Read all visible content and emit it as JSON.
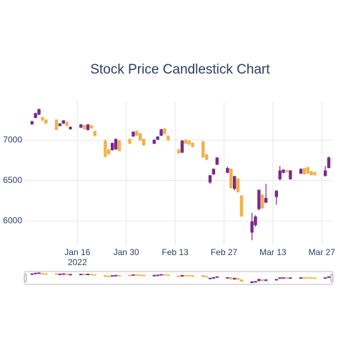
{
  "chart_data": {
    "type": "candlestick",
    "title": "Stock Price Candlestick Chart",
    "x": [
      "2022-01-03",
      "2022-01-04",
      "2022-01-05",
      "2022-01-06",
      "2022-01-07",
      "2022-01-10",
      "2022-01-11",
      "2022-01-12",
      "2022-01-13",
      "2022-01-14",
      "2022-01-17",
      "2022-01-18",
      "2022-01-19",
      "2022-01-20",
      "2022-01-21",
      "2022-01-24",
      "2022-01-25",
      "2022-01-26",
      "2022-01-27",
      "2022-01-28",
      "2022-01-31",
      "2022-02-01",
      "2022-02-02",
      "2022-02-03",
      "2022-02-04",
      "2022-02-07",
      "2022-02-08",
      "2022-02-09",
      "2022-02-10",
      "2022-02-11",
      "2022-02-14",
      "2022-02-15",
      "2022-02-16",
      "2022-02-17",
      "2022-02-18",
      "2022-02-21",
      "2022-02-22",
      "2022-02-23",
      "2022-02-24",
      "2022-02-25",
      "2022-02-28",
      "2022-03-01",
      "2022-03-02",
      "2022-03-03",
      "2022-03-04",
      "2022-03-07",
      "2022-03-08",
      "2022-03-09",
      "2022-03-10",
      "2022-03-11",
      "2022-03-14",
      "2022-03-15",
      "2022-03-16",
      "2022-03-17",
      "2022-03-18",
      "2022-03-21",
      "2022-03-22",
      "2022-03-23",
      "2022-03-24",
      "2022-03-25",
      "2022-03-28",
      "2022-03-29"
    ],
    "open": [
      7200,
      7280,
      7320,
      7280,
      7250,
      7250,
      7180,
      7210,
      7220,
      7140,
      7160,
      7180,
      7130,
      7180,
      7110,
      6990,
      6880,
      6880,
      6890,
      6990,
      7010,
      7050,
      7110,
      7080,
      7010,
      6960,
      7010,
      7060,
      7140,
      7050,
      6880,
      6850,
      7000,
      6990,
      6960,
      6980,
      6820,
      6480,
      6580,
      6700,
      6600,
      6640,
      6400,
      6520,
      6310,
      5860,
      5950,
      6150,
      6320,
      6230,
      6300,
      6520,
      6600,
      6620,
      6520,
      6590,
      6650,
      6660,
      6610,
      6600,
      6560,
      6660
    ],
    "high": [
      7240,
      7340,
      7390,
      7290,
      7260,
      7260,
      7210,
      7250,
      7230,
      7170,
      7200,
      7190,
      7200,
      7190,
      7120,
      7010,
      6890,
      6970,
      7020,
      7000,
      7020,
      7110,
      7120,
      7090,
      7020,
      7010,
      7050,
      7140,
      7150,
      7060,
      6890,
      7000,
      7010,
      7000,
      6970,
      6990,
      6830,
      6570,
      6650,
      6790,
      6670,
      6650,
      6560,
      6530,
      6320,
      6100,
      6070,
      6390,
      6330,
      6460,
      6380,
      6680,
      6640,
      6630,
      6630,
      6650,
      6660,
      6670,
      6620,
      6610,
      6680,
      6800
    ],
    "low": [
      7190,
      7270,
      7310,
      7230,
      7200,
      7120,
      7170,
      7200,
      7170,
      7130,
      7150,
      7130,
      7120,
      7140,
      7040,
      6780,
      6820,
      6870,
      6880,
      6860,
      6950,
      7040,
      7050,
      6990,
      6930,
      6950,
      7000,
      7050,
      7070,
      6990,
      6830,
      6840,
      6950,
      6940,
      6910,
      6780,
      6750,
      6460,
      6570,
      6690,
      6590,
      6400,
      6380,
      6350,
      6050,
      5760,
      5930,
      6130,
      6150,
      6220,
      6200,
      6500,
      6590,
      6600,
      6510,
      6580,
      6570,
      6580,
      6560,
      6560,
      6550,
      6650
    ],
    "close": [
      7230,
      7330,
      7380,
      7250,
      7210,
      7130,
      7200,
      7240,
      7180,
      7160,
      7190,
      7140,
      7190,
      7150,
      7060,
      6800,
      6830,
      6960,
      7010,
      6870,
      6960,
      7100,
      7060,
      7000,
      6940,
      7000,
      7040,
      7130,
      7080,
      7000,
      6840,
      6990,
      6960,
      6950,
      6920,
      6790,
      6760,
      6560,
      6640,
      6780,
      6650,
      6410,
      6550,
      6360,
      6060,
      5990,
      6050,
      6380,
      6160,
      6280,
      6370,
      6620,
      6630,
      6610,
      6620,
      6640,
      6580,
      6590,
      6570,
      6570,
      6620,
      6780
    ],
    "increasing_color": "#7b2a8c",
    "decreasing_color": "#f2b14c",
    "xlim": [
      "2022-01-01",
      "2022-03-30"
    ],
    "xticks": [
      {
        "value": "2022-01-16",
        "label": "Jan 16"
      },
      {
        "value": "2022-01-30",
        "label": "Jan 30"
      },
      {
        "value": "2022-02-13",
        "label": "Feb 13"
      },
      {
        "value": "2022-02-27",
        "label": "Feb 27"
      },
      {
        "value": "2022-03-13",
        "label": "Mar 13"
      },
      {
        "value": "2022-03-27",
        "label": "Mar 27"
      }
    ],
    "year_label": "2022",
    "ylim": [
      5700,
      7470
    ],
    "yticks": [
      6000,
      6500,
      7000
    ],
    "grid": true,
    "rangeslider": true
  }
}
